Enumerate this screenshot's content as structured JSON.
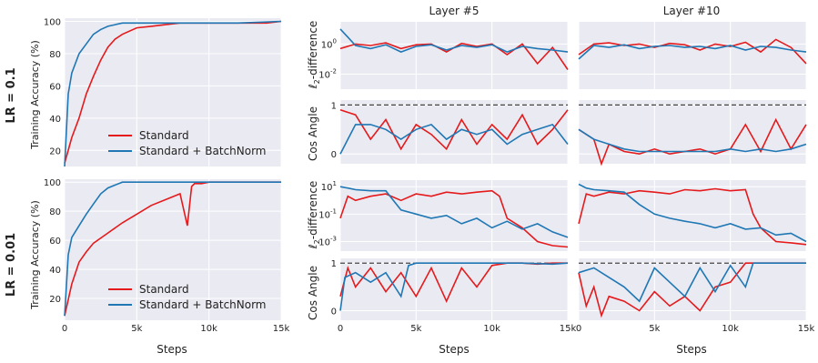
{
  "colors": {
    "standard": "#e41a1c",
    "batchnorm": "#1f77b4",
    "panel_bg": "#eaeaf2",
    "grid": "#ffffff",
    "dashed": "#444444"
  },
  "labels": {
    "row_lr1": "LR = 0.1",
    "row_lr2": "LR = 0.01",
    "col_layer5": "Layer #5",
    "col_layer10": "Layer #10",
    "ylabel_acc": "Training Accuracy (%)",
    "ylabel_l2": "ℓ2-difference",
    "ylabel_l2_main": "ℓ",
    "ylabel_l2_sub": "2",
    "ylabel_l2_rest": "-difference",
    "ylabel_cos": "Cos Angle",
    "xlabel": "Steps"
  },
  "legend": {
    "standard": "Standard",
    "batchnorm": "Standard +  BatchNorm"
  },
  "chart_data": [
    {
      "id": "acc_lr1",
      "type": "line",
      "ylabel": "Training Accuracy (%)",
      "row_label": "LR = 0.1",
      "xlim": [
        0,
        15000
      ],
      "ylim": [
        10,
        102
      ],
      "yticks": [
        20,
        40,
        60,
        80,
        100
      ],
      "xticks": [
        0,
        5000,
        10000,
        15000
      ],
      "xtick_labels": [
        "",
        "",
        "",
        ""
      ],
      "legend_position": "lower-right",
      "series": [
        {
          "name": "Standard",
          "x": [
            0,
            500,
            1000,
            1500,
            2000,
            2500,
            3000,
            3500,
            4000,
            5000,
            6000,
            7000,
            8000,
            9000,
            10000,
            11000,
            12000,
            13000,
            14000,
            15000
          ],
          "y": [
            12,
            28,
            40,
            55,
            66,
            76,
            84,
            89,
            92,
            96,
            97,
            98,
            99,
            99,
            99,
            99,
            99,
            99,
            99,
            100
          ]
        },
        {
          "name": "Standard +  BatchNorm",
          "x": [
            0,
            250,
            500,
            1000,
            1500,
            2000,
            2500,
            3000,
            3500,
            4000,
            5000,
            6000,
            8000,
            10000,
            12000,
            15000
          ],
          "y": [
            10,
            55,
            68,
            80,
            86,
            92,
            95,
            97,
            98,
            99,
            99,
            99,
            99,
            99,
            99,
            100
          ]
        }
      ]
    },
    {
      "id": "acc_lr2",
      "type": "line",
      "ylabel": "Training Accuracy (%)",
      "row_label": "LR = 0.01",
      "xlabel": "Steps",
      "xlim": [
        0,
        15000
      ],
      "ylim": [
        5,
        102
      ],
      "yticks": [
        20,
        40,
        60,
        80,
        100
      ],
      "xticks": [
        0,
        5000,
        10000,
        15000
      ],
      "xtick_labels": [
        "0",
        "5k",
        "10k",
        "15k"
      ],
      "legend_position": "lower-right",
      "series": [
        {
          "name": "Standard",
          "x": [
            0,
            500,
            1000,
            1500,
            2000,
            3000,
            4000,
            5000,
            6000,
            7000,
            8000,
            8500,
            8800,
            9000,
            9500,
            10000,
            11000,
            15000
          ],
          "y": [
            8,
            30,
            45,
            52,
            58,
            65,
            72,
            78,
            84,
            88,
            92,
            70,
            97,
            99,
            99,
            100,
            100,
            100
          ]
        },
        {
          "name": "Standard +  BatchNorm",
          "x": [
            0,
            250,
            500,
            1000,
            1500,
            2000,
            2500,
            3000,
            3500,
            4000,
            5000,
            8000,
            15000
          ],
          "y": [
            8,
            50,
            62,
            70,
            78,
            85,
            92,
            96,
            98,
            100,
            100,
            100,
            100
          ]
        }
      ]
    },
    {
      "id": "l2_lr1_l5",
      "type": "line",
      "scale": "log",
      "ylabel": "ℓ2-difference",
      "title": "Layer #5",
      "xlim": [
        0,
        15000
      ],
      "ylim": [
        0.001,
        30
      ],
      "yticks": [
        1,
        0.01
      ],
      "ytick_labels": [
        "10^0",
        "10^-2"
      ],
      "series": [
        {
          "name": "Standard",
          "x": [
            0,
            1000,
            2000,
            3000,
            4000,
            5000,
            6000,
            7000,
            8000,
            9000,
            10000,
            11000,
            12000,
            13000,
            14000,
            15000
          ],
          "y": [
            0.5,
            1,
            0.8,
            1.2,
            0.5,
            0.9,
            1,
            0.3,
            1.1,
            0.7,
            1,
            0.2,
            1,
            0.05,
            0.6,
            0.02
          ]
        },
        {
          "name": "Standard +  BatchNorm",
          "x": [
            0,
            1000,
            2000,
            3000,
            4000,
            5000,
            6000,
            7000,
            8000,
            9000,
            10000,
            11000,
            12000,
            13000,
            14000,
            15000
          ],
          "y": [
            10,
            0.8,
            0.5,
            0.9,
            0.3,
            0.7,
            0.9,
            0.4,
            0.8,
            0.6,
            0.9,
            0.3,
            0.7,
            0.5,
            0.4,
            0.3
          ]
        }
      ]
    },
    {
      "id": "l2_lr1_l10",
      "type": "line",
      "scale": "log",
      "title": "Layer #10",
      "xlim": [
        0,
        15000
      ],
      "ylim": [
        0.001,
        30
      ],
      "series": [
        {
          "name": "Standard",
          "x": [
            0,
            1000,
            2000,
            3000,
            4000,
            5000,
            6000,
            7000,
            8000,
            9000,
            10000,
            11000,
            12000,
            13000,
            14000,
            15000
          ],
          "y": [
            0.2,
            1,
            1.2,
            0.8,
            1,
            0.6,
            1.1,
            0.9,
            0.4,
            1,
            0.7,
            1.3,
            0.3,
            2,
            0.6,
            0.05
          ]
        },
        {
          "name": "Standard +  BatchNorm",
          "x": [
            0,
            1000,
            2000,
            3000,
            4000,
            5000,
            6000,
            7000,
            8000,
            9000,
            10000,
            11000,
            12000,
            13000,
            14000,
            15000
          ],
          "y": [
            0.1,
            0.8,
            0.6,
            0.9,
            0.5,
            0.7,
            0.8,
            0.6,
            0.7,
            0.5,
            0.8,
            0.4,
            0.7,
            0.6,
            0.4,
            0.3
          ]
        }
      ]
    },
    {
      "id": "cos_lr1_l5",
      "type": "line",
      "ylabel": "Cos Angle",
      "xlim": [
        0,
        15000
      ],
      "ylim": [
        -0.2,
        1.1
      ],
      "yticks": [
        1,
        0
      ],
      "hline": 1,
      "series": [
        {
          "name": "Standard",
          "x": [
            0,
            1000,
            2000,
            3000,
            4000,
            5000,
            6000,
            7000,
            8000,
            9000,
            10000,
            11000,
            12000,
            13000,
            14000,
            15000
          ],
          "y": [
            0.9,
            0.8,
            0.3,
            0.7,
            0.1,
            0.6,
            0.4,
            0.1,
            0.7,
            0.2,
            0.6,
            0.3,
            0.8,
            0.2,
            0.5,
            0.9
          ]
        },
        {
          "name": "Standard +  BatchNorm",
          "x": [
            0,
            1000,
            2000,
            3000,
            4000,
            5000,
            6000,
            7000,
            8000,
            9000,
            10000,
            11000,
            12000,
            13000,
            14000,
            15000
          ],
          "y": [
            0.0,
            0.6,
            0.6,
            0.5,
            0.3,
            0.5,
            0.6,
            0.3,
            0.5,
            0.4,
            0.5,
            0.2,
            0.4,
            0.5,
            0.6,
            0.2
          ]
        }
      ]
    },
    {
      "id": "cos_lr1_l10",
      "type": "line",
      "xlim": [
        0,
        15000
      ],
      "ylim": [
        -0.2,
        1.1
      ],
      "hline": 1,
      "series": [
        {
          "name": "Standard",
          "x": [
            0,
            1000,
            1500,
            2000,
            3000,
            4000,
            5000,
            6000,
            7000,
            8000,
            9000,
            10000,
            11000,
            12000,
            13000,
            14000,
            15000
          ],
          "y": [
            0.5,
            0.3,
            -0.2,
            0.2,
            0.05,
            0.0,
            0.1,
            0.0,
            0.05,
            0.1,
            0.0,
            0.1,
            0.6,
            0.05,
            0.7,
            0.1,
            0.6
          ]
        },
        {
          "name": "Standard +  BatchNorm",
          "x": [
            0,
            1000,
            2000,
            3000,
            4000,
            5000,
            6000,
            7000,
            8000,
            9000,
            10000,
            11000,
            12000,
            13000,
            14000,
            15000
          ],
          "y": [
            0.5,
            0.3,
            0.2,
            0.1,
            0.05,
            0.05,
            0.05,
            0.05,
            0.05,
            0.05,
            0.1,
            0.05,
            0.1,
            0.05,
            0.1,
            0.2
          ]
        }
      ]
    },
    {
      "id": "l2_lr2_l5",
      "type": "line",
      "scale": "log",
      "ylabel": "ℓ2-difference",
      "xlim": [
        0,
        15000
      ],
      "ylim": [
        0.0002,
        30
      ],
      "yticks": [
        10,
        0.1,
        0.001
      ],
      "ytick_labels": [
        "10^1",
        "10^-1",
        "10^-3"
      ],
      "series": [
        {
          "name": "Standard",
          "x": [
            0,
            500,
            1000,
            2000,
            3000,
            4000,
            5000,
            6000,
            7000,
            8000,
            9000,
            10000,
            10500,
            11000,
            12000,
            13000,
            14000,
            15000
          ],
          "y": [
            0.05,
            2,
            1,
            2,
            3,
            1,
            3,
            2,
            4,
            3,
            4,
            5,
            2,
            0.05,
            0.01,
            0.001,
            0.0005,
            0.0004
          ]
        },
        {
          "name": "Standard +  BatchNorm",
          "x": [
            0,
            500,
            1000,
            2000,
            3000,
            3500,
            4000,
            5000,
            6000,
            7000,
            8000,
            9000,
            10000,
            11000,
            12000,
            13000,
            14000,
            15000
          ],
          "y": [
            10,
            8,
            6,
            5,
            5,
            1,
            0.2,
            0.1,
            0.05,
            0.08,
            0.02,
            0.05,
            0.01,
            0.03,
            0.008,
            0.02,
            0.005,
            0.002
          ]
        }
      ]
    },
    {
      "id": "l2_lr2_l10",
      "type": "line",
      "scale": "log",
      "xlim": [
        0,
        15000
      ],
      "ylim": [
        0.0002,
        30
      ],
      "series": [
        {
          "name": "Standard",
          "x": [
            0,
            500,
            1000,
            2000,
            3000,
            4000,
            5000,
            6000,
            7000,
            8000,
            9000,
            10000,
            11000,
            11500,
            12000,
            13000,
            14000,
            15000
          ],
          "y": [
            0.02,
            3,
            2,
            4,
            3,
            5,
            4,
            3,
            6,
            5,
            7,
            5,
            6,
            0.1,
            0.01,
            0.001,
            0.0008,
            0.0006
          ]
        },
        {
          "name": "Standard +  BatchNorm",
          "x": [
            0,
            500,
            1000,
            2000,
            3000,
            4000,
            5000,
            6000,
            7000,
            8000,
            9000,
            10000,
            11000,
            12000,
            13000,
            14000,
            15000
          ],
          "y": [
            15,
            8,
            6,
            5,
            4,
            0.5,
            0.1,
            0.05,
            0.03,
            0.02,
            0.01,
            0.02,
            0.008,
            0.01,
            0.003,
            0.004,
            0.001
          ]
        }
      ]
    },
    {
      "id": "cos_lr2_l5",
      "type": "line",
      "ylabel": "Cos Angle",
      "xlabel": "Steps",
      "xlim": [
        0,
        15000
      ],
      "ylim": [
        -0.2,
        1.1
      ],
      "yticks": [
        1,
        0
      ],
      "hline": 1,
      "xticks": [
        0,
        5000,
        10000,
        15000
      ],
      "xtick_labels": [
        "0",
        "5k",
        "10k",
        "15k"
      ],
      "series": [
        {
          "name": "Standard",
          "x": [
            0,
            500,
            1000,
            2000,
            3000,
            4000,
            5000,
            6000,
            7000,
            8000,
            9000,
            10000,
            11000,
            12000,
            13000,
            14000,
            15000
          ],
          "y": [
            0.3,
            0.9,
            0.5,
            0.9,
            0.4,
            0.8,
            0.3,
            0.9,
            0.2,
            0.9,
            0.5,
            0.95,
            1,
            1,
            0.98,
            1,
            1
          ]
        },
        {
          "name": "Standard +  BatchNorm",
          "x": [
            0,
            300,
            1000,
            2000,
            3000,
            4000,
            4500,
            5000,
            6000,
            8000,
            10000,
            12000,
            14000,
            15000
          ],
          "y": [
            0.0,
            0.7,
            0.8,
            0.6,
            0.8,
            0.3,
            0.95,
            1,
            1,
            1,
            1,
            1,
            0.98,
            1
          ]
        }
      ]
    },
    {
      "id": "cos_lr2_l10",
      "type": "line",
      "xlabel": "Steps",
      "xlim": [
        0,
        15000
      ],
      "ylim": [
        -0.2,
        1.1
      ],
      "hline": 1,
      "xticks": [
        0,
        5000,
        10000,
        15000
      ],
      "xtick_labels": [
        "0",
        "5k",
        "10k",
        "15k"
      ],
      "series": [
        {
          "name": "Standard",
          "x": [
            0,
            500,
            1000,
            1500,
            2000,
            3000,
            4000,
            5000,
            6000,
            7000,
            8000,
            9000,
            10000,
            11000,
            12000,
            13000,
            14000,
            15000
          ],
          "y": [
            0.8,
            0.1,
            0.5,
            -0.1,
            0.3,
            0.2,
            0.0,
            0.4,
            0.1,
            0.3,
            0.0,
            0.5,
            0.6,
            1,
            1,
            1,
            1,
            1
          ]
        },
        {
          "name": "Standard +  BatchNorm",
          "x": [
            0,
            1000,
            2000,
            3000,
            4000,
            5000,
            6000,
            7000,
            8000,
            9000,
            10000,
            11000,
            11500,
            12000,
            13000,
            14000,
            15000
          ],
          "y": [
            0.8,
            0.9,
            0.7,
            0.5,
            0.2,
            0.9,
            0.6,
            0.3,
            0.9,
            0.4,
            0.95,
            0.5,
            1,
            1,
            1,
            1,
            1
          ]
        }
      ]
    }
  ]
}
